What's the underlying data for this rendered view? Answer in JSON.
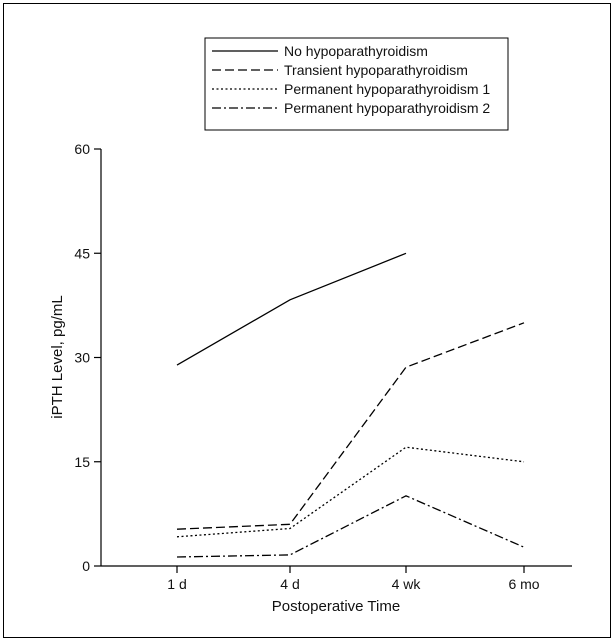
{
  "chart_data": {
    "type": "line",
    "xlabel": "Postoperative Time",
    "ylabel": "iPTH Level, pg/mL",
    "categories": [
      "1 d",
      "4 d",
      "4 wk",
      "6 mo"
    ],
    "ylim": [
      0,
      60
    ],
    "yticks": [
      0,
      15,
      30,
      45,
      60
    ],
    "grid": false,
    "legend_position": "top",
    "series": [
      {
        "name": "No hypoparathyroidism",
        "dash": "solid",
        "values": [
          28.9,
          38.3,
          45.0,
          null
        ]
      },
      {
        "name": "Transient hypoparathyroidism",
        "dash": "dashed",
        "values": [
          5.3,
          6.0,
          28.6,
          35.0
        ]
      },
      {
        "name": "Permanent hypoparathyroidism 1",
        "dash": "dotted",
        "values": [
          4.2,
          5.4,
          17.1,
          15.0
        ]
      },
      {
        "name": "Permanent hypoparathyroidism 2",
        "dash": "dashdot",
        "values": [
          1.3,
          1.6,
          10.1,
          2.7
        ]
      }
    ]
  }
}
